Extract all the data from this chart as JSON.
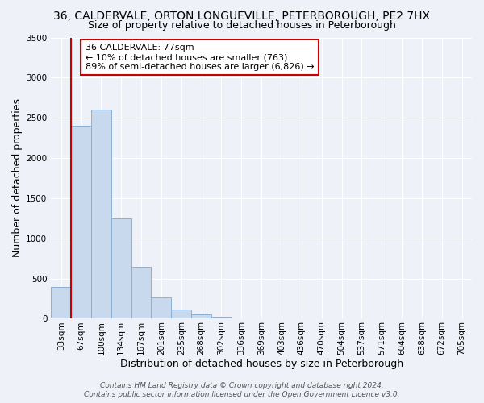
{
  "title": "36, CALDERVALE, ORTON LONGUEVILLE, PETERBOROUGH, PE2 7HX",
  "subtitle": "Size of property relative to detached houses in Peterborough",
  "xlabel": "Distribution of detached houses by size in Peterborough",
  "ylabel": "Number of detached properties",
  "bin_labels": [
    "33sqm",
    "67sqm",
    "100sqm",
    "134sqm",
    "167sqm",
    "201sqm",
    "235sqm",
    "268sqm",
    "302sqm",
    "336sqm",
    "369sqm",
    "403sqm",
    "436sqm",
    "470sqm",
    "504sqm",
    "537sqm",
    "571sqm",
    "604sqm",
    "638sqm",
    "672sqm",
    "705sqm"
  ],
  "bar_values": [
    400,
    2400,
    2600,
    1250,
    650,
    270,
    110,
    55,
    25,
    0,
    0,
    0,
    0,
    0,
    0,
    0,
    0,
    0,
    0,
    0
  ],
  "bar_color": "#c8d9ee",
  "bar_edge_color": "#8ab0d4",
  "vline_color": "#cc0000",
  "ylim": [
    0,
    3500
  ],
  "yticks": [
    0,
    500,
    1000,
    1500,
    2000,
    2500,
    3000,
    3500
  ],
  "annotation_title": "36 CALDERVALE: 77sqm",
  "annotation_line1": "← 10% of detached houses are smaller (763)",
  "annotation_line2": "89% of semi-detached houses are larger (6,826) →",
  "annotation_box_color": "#ffffff",
  "annotation_box_edge": "#cc0000",
  "footer_line1": "Contains HM Land Registry data © Crown copyright and database right 2024.",
  "footer_line2": "Contains public sector information licensed under the Open Government Licence v3.0.",
  "background_color": "#eef2f8",
  "grid_color": "#ffffff",
  "title_fontsize": 10,
  "subtitle_fontsize": 9,
  "axis_label_fontsize": 9,
  "tick_fontsize": 7.5,
  "footer_fontsize": 6.5,
  "annotation_fontsize": 8
}
